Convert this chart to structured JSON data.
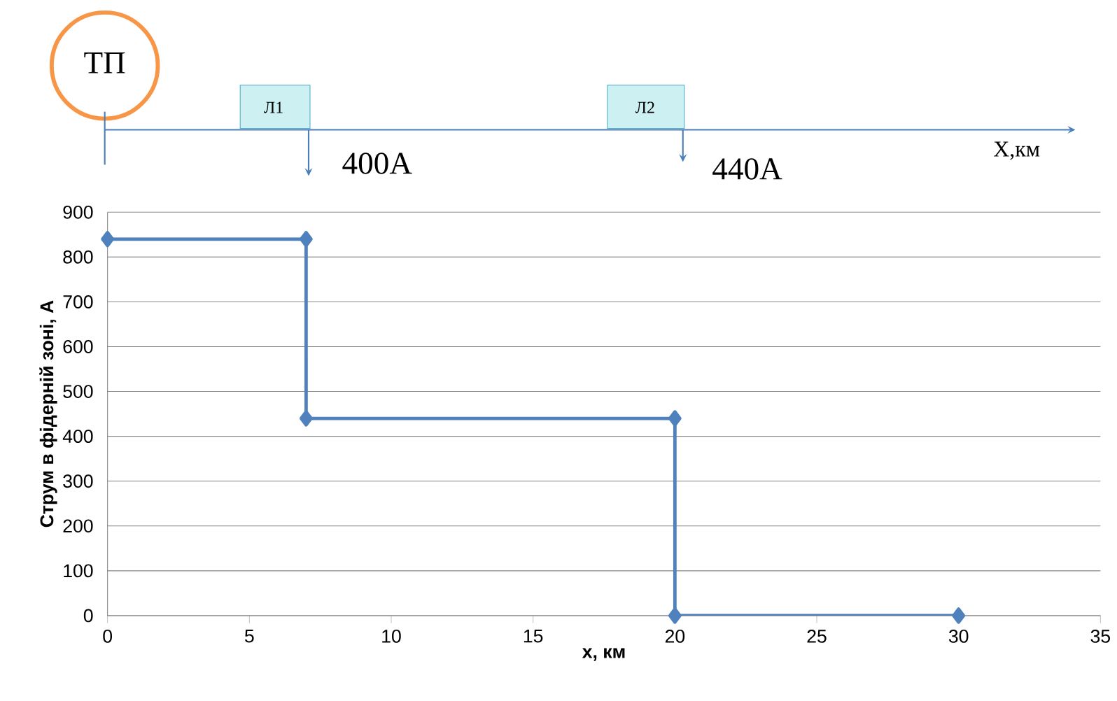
{
  "chart_data": {
    "type": "line",
    "xlabel": "x, км",
    "ylabel": "Струм в фідерній зоні, А",
    "annotations": [
      "ТП",
      "Л1",
      "Л2",
      "400А",
      "440А",
      "Х,км"
    ],
    "series": [
      {
        "color": "#4f81bd",
        "x": [
          0,
          7,
          7,
          20,
          20,
          30
        ],
        "values": [
          840,
          840,
          440,
          440,
          0,
          0
        ]
      }
    ],
    "xlim": [
      0,
      35
    ],
    "xticks": [
      0,
      5,
      10,
      15,
      20,
      25,
      30,
      35
    ],
    "ylim": [
      0,
      900
    ],
    "yticks": [
      0,
      100,
      200,
      300,
      400,
      500,
      600,
      700,
      800,
      900
    ],
    "grid": "y",
    "marker": "diamond",
    "line_style": "solid"
  }
}
